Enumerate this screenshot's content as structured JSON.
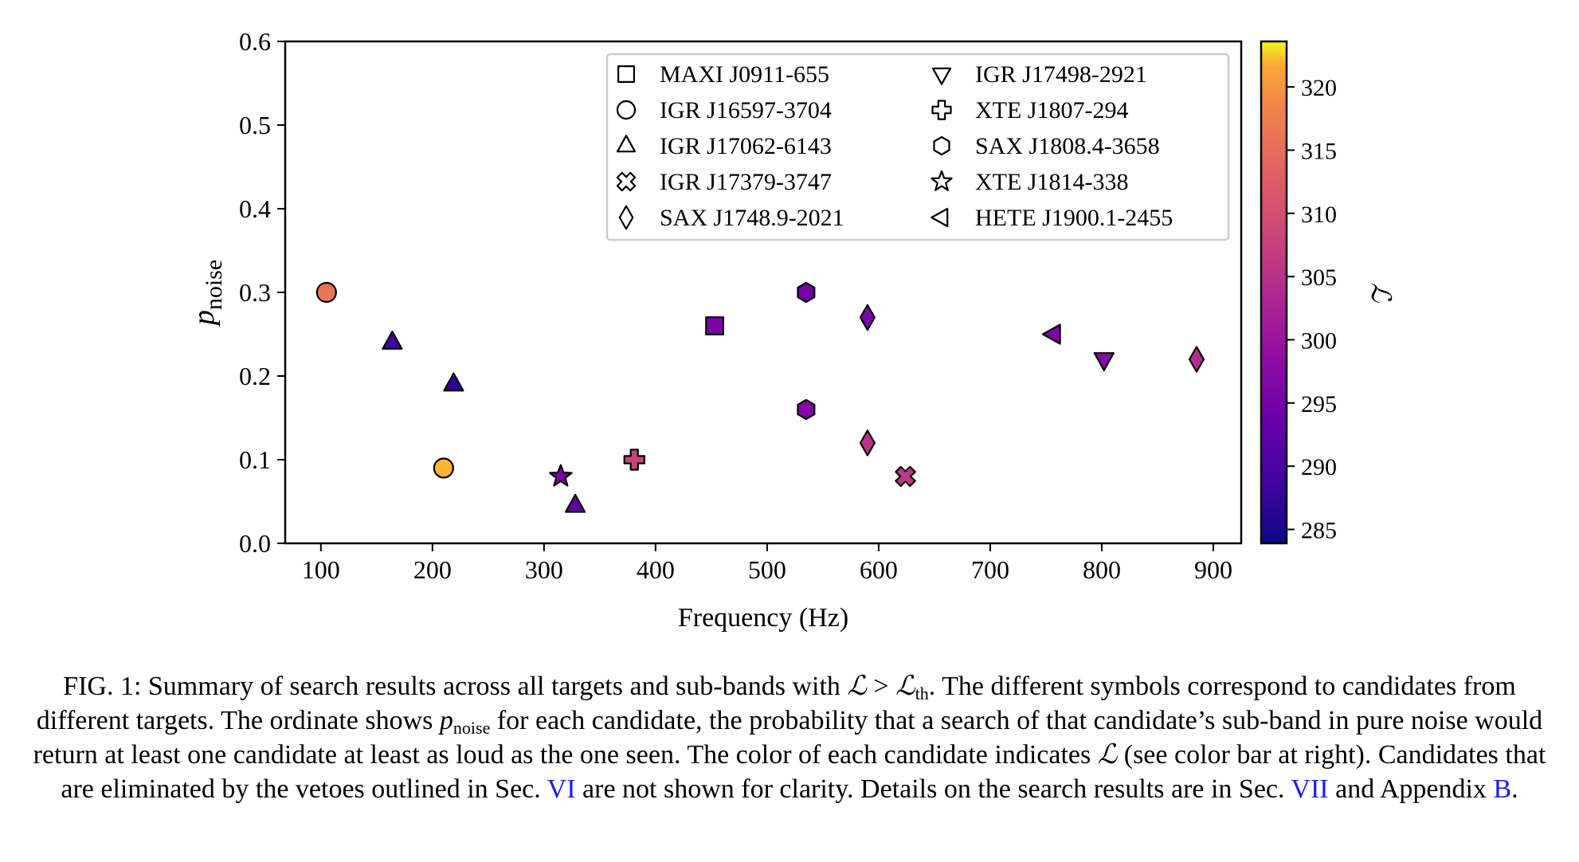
{
  "chart_data": {
    "type": "scatter",
    "title": "",
    "xlabel": "Frequency (Hz)",
    "ylabel": "p",
    "ylabel_sub": "noise",
    "xlim": [
      68,
      925
    ],
    "ylim": [
      0.0,
      0.6
    ],
    "xticks": [
      100,
      200,
      300,
      400,
      500,
      600,
      700,
      800,
      900
    ],
    "xtick_labels": [
      "100",
      "200",
      "300",
      "400",
      "500",
      "600",
      "700",
      "800",
      "900"
    ],
    "yticks": [
      0.0,
      0.1,
      0.2,
      0.3,
      0.4,
      0.5,
      0.6
    ],
    "ytick_labels": [
      "0.0",
      "0.1",
      "0.2",
      "0.3",
      "0.4",
      "0.5",
      "0.6"
    ],
    "grid": false,
    "legend_position": "top-right",
    "colorbar": {
      "label": "ℒ",
      "min": 283.9,
      "max": 323.6,
      "colormap": "plasma",
      "ticks": [
        285,
        290,
        295,
        300,
        305,
        310,
        315,
        320
      ],
      "tick_labels": [
        "285",
        "290",
        "295",
        "300",
        "305",
        "310",
        "315",
        "320"
      ]
    },
    "series": [
      {
        "name": "MAXI J0911-655",
        "marker": "square",
        "points": [
          {
            "x": 453,
            "y": 0.26,
            "L": 296
          }
        ]
      },
      {
        "name": "IGR J16597-3704",
        "marker": "circle",
        "points": [
          {
            "x": 105,
            "y": 0.3,
            "L": 316
          },
          {
            "x": 210,
            "y": 0.09,
            "L": 322
          }
        ]
      },
      {
        "name": "IGR J17062-6143",
        "marker": "triangle-up",
        "points": [
          {
            "x": 164,
            "y": 0.24,
            "L": 289
          },
          {
            "x": 219,
            "y": 0.19,
            "L": 287
          },
          {
            "x": 328,
            "y": 0.045,
            "L": 293
          }
        ]
      },
      {
        "name": "IGR J17379-3747",
        "marker": "x-filled",
        "points": [
          {
            "x": 624,
            "y": 0.08,
            "L": 306
          }
        ]
      },
      {
        "name": "SAX J1748.9-2021",
        "marker": "diamond",
        "points": [
          {
            "x": 590,
            "y": 0.27,
            "L": 296
          },
          {
            "x": 590,
            "y": 0.12,
            "L": 305
          },
          {
            "x": 885,
            "y": 0.22,
            "L": 304
          }
        ]
      },
      {
        "name": "IGR J17498-2921",
        "marker": "triangle-down",
        "points": [
          {
            "x": 802,
            "y": 0.22,
            "L": 298
          }
        ]
      },
      {
        "name": "XTE J1807-294",
        "marker": "plus-filled",
        "points": [
          {
            "x": 381,
            "y": 0.1,
            "L": 308
          }
        ]
      },
      {
        "name": "SAX J1808.4-3658",
        "marker": "hexagon",
        "points": [
          {
            "x": 535,
            "y": 0.3,
            "L": 295
          },
          {
            "x": 535,
            "y": 0.16,
            "L": 297
          }
        ]
      },
      {
        "name": "XTE J1814-338",
        "marker": "star",
        "points": [
          {
            "x": 315,
            "y": 0.08,
            "L": 296
          }
        ]
      },
      {
        "name": "HETE J1900.1-2455",
        "marker": "triangle-left",
        "points": [
          {
            "x": 757,
            "y": 0.25,
            "L": 296
          }
        ]
      }
    ]
  },
  "caption": {
    "prefix": "FIG. 1: Summary of search results across all targets and sub-bands with ",
    "math_L": "ℒ",
    "gt": " > ",
    "sub_th": "th",
    "after_threshold": ". The different symbols correspond to candidates from different targets. The ordinate shows ",
    "math_p": "p",
    "sub_noise": "noise",
    "after_pnoise": " for each candidate, the probability that a search of that candidate’s sub-band in pure noise would return at least one candidate at least as loud as the one seen. The color of each candidate indicates ",
    "after_color": " (see color bar at right). Candidates that are eliminated by the vetoes outlined in Sec. ",
    "ref_sec6": "VI",
    "after_sec6": " are not shown for clarity. Details on the search results are in Sec. ",
    "ref_sec7": "VII",
    "and_appendix": " and Appendix ",
    "ref_appB": "B",
    "end": "."
  }
}
